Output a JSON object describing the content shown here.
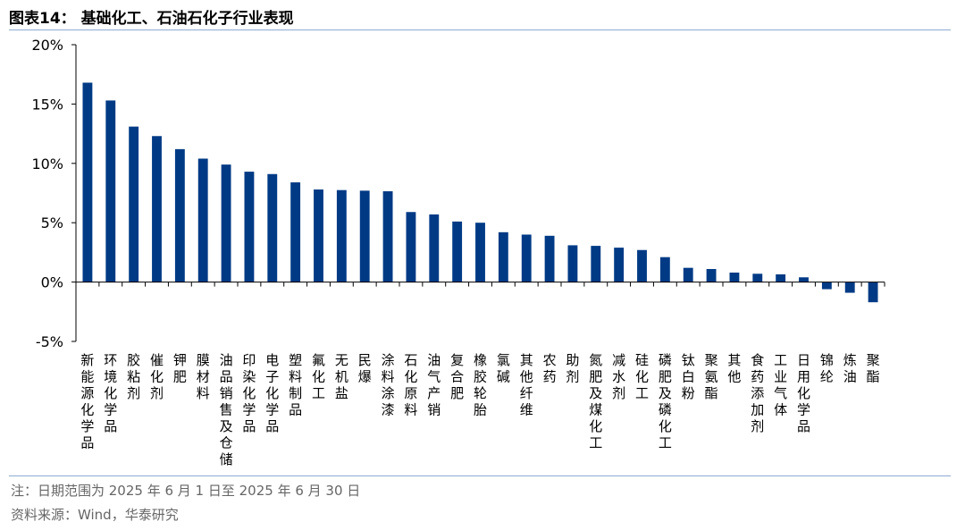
{
  "header": {
    "title": "图表14：  基础化工、石油石化子行业表现"
  },
  "footer": {
    "note": "注：日期范围为 2025 年 6 月 1 日至 2025 年 6 月 30 日",
    "source": "资料来源：Wind，华泰研究"
  },
  "colors": {
    "bar": "#003a85",
    "rule": "#8eaad3",
    "axis": "#000000"
  },
  "chart_data": {
    "type": "bar",
    "title": "",
    "xlabel": "",
    "ylabel": "",
    "ylim": [
      -5,
      20
    ],
    "yticks": [
      -5,
      0,
      5,
      10,
      15,
      20
    ],
    "ytick_labels": [
      "-5%",
      "0%",
      "5%",
      "10%",
      "15%",
      "20%"
    ],
    "grid": false,
    "categories": [
      "新能源化学品",
      "环境化学品",
      "胶粘剂",
      "催化剂",
      "钾肥",
      "膜材料",
      "油品销售及仓储",
      "印染化学品",
      "电子化学品",
      "塑料制品",
      "氟化工",
      "无机盐",
      "民爆",
      "涂料涂漆",
      "石化原料",
      "油气产销",
      "复合肥",
      "橡胶轮胎",
      "氯碱",
      "其他纤维",
      "农药",
      "助剂",
      "氮肥及煤化工",
      "减水剂",
      "硅化工",
      "磷肥及磷化工",
      "钛白粉",
      "聚氨酯",
      "其他",
      "食药添加剂",
      "工业气体",
      "日用化学品",
      "锦纶",
      "炼油",
      "聚酯"
    ],
    "values": [
      16.8,
      15.3,
      13.1,
      12.3,
      11.2,
      10.4,
      9.9,
      9.3,
      9.1,
      8.4,
      7.8,
      7.75,
      7.7,
      7.65,
      5.9,
      5.7,
      5.1,
      5.0,
      4.2,
      4.0,
      3.9,
      3.1,
      3.05,
      2.9,
      2.7,
      2.1,
      1.2,
      1.1,
      0.8,
      0.7,
      0.65,
      0.4,
      -0.6,
      -0.9,
      -1.7
    ]
  }
}
